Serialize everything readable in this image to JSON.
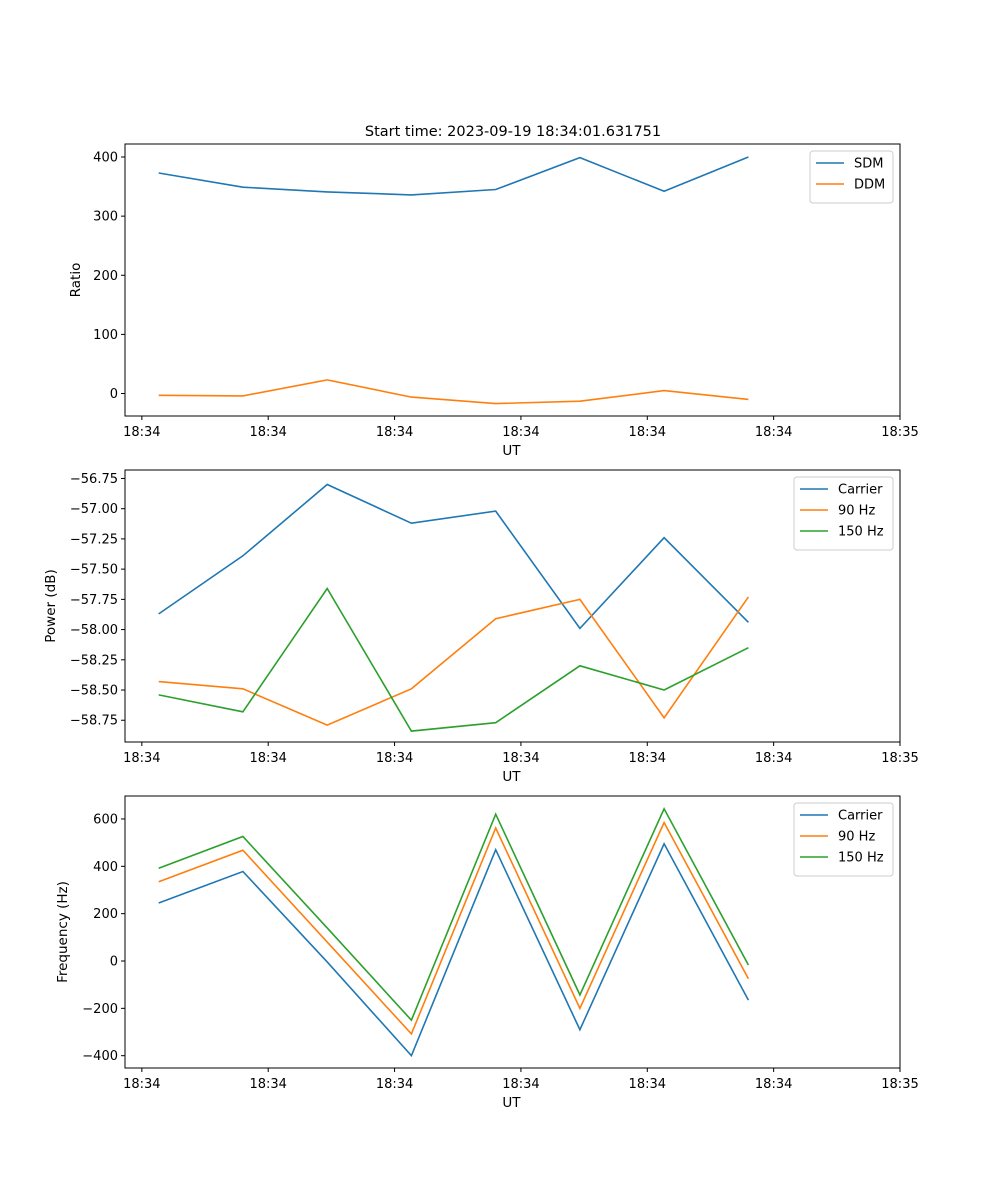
{
  "figure": {
    "suptitle": "Start time: 2023-09-19 18:34:01.631751"
  },
  "colors": {
    "blue": "#1f77b4",
    "orange": "#ff7f0e",
    "green": "#2ca02c",
    "axis": "#000000"
  },
  "chart_data": [
    {
      "type": "line",
      "title": "Start time: 2023-09-19 18:34:01.631751",
      "xlabel": "UT",
      "ylabel": "Ratio",
      "x_tick_labels": [
        "18:34",
        "18:34",
        "18:34",
        "18:34",
        "18:34",
        "18:34",
        "18:34"
      ],
      "x_end_label": "18:35",
      "x": [
        1,
        2,
        3,
        4,
        5,
        6,
        7,
        8
      ],
      "xlim": [
        0.6,
        9.8
      ],
      "x_ticks": [
        0.8,
        2.3,
        3.8,
        5.3,
        6.8,
        8.3,
        9.8
      ],
      "ylim": [
        -38,
        422
      ],
      "yticks": [
        0,
        100,
        200,
        300,
        400
      ],
      "ytick_labels": [
        "0",
        "100",
        "200",
        "300",
        "400"
      ],
      "legend": "top-right",
      "series": [
        {
          "name": "SDM",
          "color": "#1f77b4",
          "values": [
            373,
            349,
            341,
            336,
            345,
            399,
            342,
            400
          ]
        },
        {
          "name": "DDM",
          "color": "#ff7f0e",
          "values": [
            -3,
            -4,
            23,
            -6,
            -17,
            -13,
            5,
            -10
          ]
        }
      ]
    },
    {
      "type": "line",
      "xlabel": "UT",
      "ylabel": "Power (dB)",
      "x_tick_labels": [
        "18:34",
        "18:34",
        "18:34",
        "18:34",
        "18:34",
        "18:34",
        "18:34"
      ],
      "x_end_label": "18:35",
      "x": [
        1,
        2,
        3,
        4,
        5,
        6,
        7,
        8
      ],
      "xlim": [
        0.6,
        9.8
      ],
      "x_ticks": [
        0.8,
        2.3,
        3.8,
        5.3,
        6.8,
        8.3,
        9.8
      ],
      "ylim": [
        -58.93,
        -56.68
      ],
      "yticks": [
        -58.75,
        -58.5,
        -58.25,
        -58.0,
        -57.75,
        -57.5,
        -57.25,
        -57.0,
        -56.75
      ],
      "ytick_labels": [
        "−58.75",
        "−58.50",
        "−58.25",
        "−58.00",
        "−57.75",
        "−57.50",
        "−57.25",
        "−57.00",
        "−56.75"
      ],
      "legend": "top-right",
      "series": [
        {
          "name": "Carrier",
          "color": "#1f77b4",
          "values": [
            -57.87,
            -57.39,
            -56.8,
            -57.12,
            -57.02,
            -57.99,
            -57.24,
            -57.94
          ]
        },
        {
          "name": "90 Hz",
          "color": "#ff7f0e",
          "values": [
            -58.43,
            -58.49,
            -58.79,
            -58.49,
            -57.91,
            -57.75,
            -58.73,
            -57.73
          ]
        },
        {
          "name": "150 Hz",
          "color": "#2ca02c",
          "values": [
            -58.54,
            -58.68,
            -57.66,
            -58.84,
            -58.77,
            -58.3,
            -58.5,
            -58.15
          ]
        }
      ]
    },
    {
      "type": "line",
      "xlabel": "UT",
      "ylabel": "Frequency (Hz)",
      "x_tick_labels": [
        "18:34",
        "18:34",
        "18:34",
        "18:34",
        "18:34",
        "18:34",
        "18:34"
      ],
      "x_end_label": "18:35",
      "x": [
        1,
        2,
        3,
        4,
        5,
        6,
        7,
        8
      ],
      "xlim": [
        0.6,
        9.8
      ],
      "x_ticks": [
        0.8,
        2.3,
        3.8,
        5.3,
        6.8,
        8.3,
        9.8
      ],
      "ylim": [
        -452,
        697
      ],
      "yticks": [
        -400,
        -200,
        0,
        200,
        400,
        600
      ],
      "ytick_labels": [
        "−400",
        "−200",
        "0",
        "200",
        "400",
        "600"
      ],
      "legend": "top-right",
      "series": [
        {
          "name": "Carrier",
          "color": "#1f77b4",
          "values": [
            245,
            378,
            -4,
            -400,
            470,
            -290,
            495,
            -165
          ]
        },
        {
          "name": "90 Hz",
          "color": "#ff7f0e",
          "values": [
            335,
            468,
            80,
            -308,
            562,
            -200,
            585,
            -75
          ]
        },
        {
          "name": "150 Hz",
          "color": "#2ca02c",
          "values": [
            392,
            526,
            140,
            -250,
            620,
            -143,
            643,
            -17
          ]
        }
      ]
    }
  ]
}
